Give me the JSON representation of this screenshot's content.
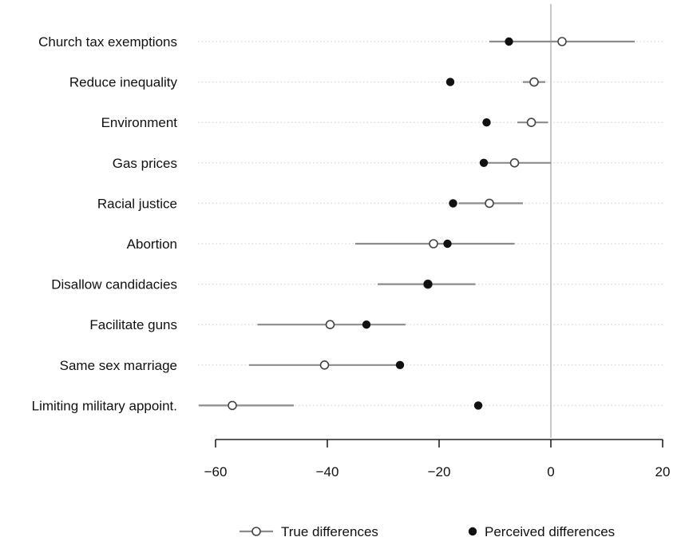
{
  "chart_data": {
    "type": "scatter",
    "categories": [
      "Church tax exemptions",
      "Reduce inequality",
      "Environment",
      "Gas prices",
      "Racial justice",
      "Abortion",
      "Disallow candidacies",
      "Facilitate guns",
      "Same sex marriage",
      "Limiting military appoint."
    ],
    "series": [
      {
        "name": "True differences",
        "marker": "open-circle",
        "values": [
          2,
          -3,
          -3.5,
          -6.5,
          -11,
          -21,
          -22,
          -39.5,
          -40.5,
          -57
        ],
        "ci_low": [
          -11,
          -5,
          -6,
          -12,
          -16.5,
          -35,
          -31,
          -52.5,
          -54,
          -63
        ],
        "ci_high": [
          15,
          -1,
          -0.5,
          0,
          -5,
          -6.5,
          -13.5,
          -26,
          -27,
          -46
        ]
      },
      {
        "name": "Perceived differences",
        "marker": "filled-circle",
        "values": [
          -7.5,
          -18,
          -11.5,
          -12,
          -17.5,
          -18.5,
          -22,
          -33,
          -27,
          -13
        ]
      }
    ],
    "xlim": [
      -60,
      20
    ],
    "xticks": [
      -60,
      -40,
      -20,
      0,
      20
    ],
    "xtick_labels": [
      "−60",
      "−40",
      "−20",
      "0",
      "20"
    ],
    "reference_line_x": 0,
    "gridlines": "dotted-horizontal",
    "legend_position": "bottom"
  },
  "colors": {
    "ci_line": "#8c8c8c",
    "reference_line": "#c8c8c8",
    "axis": "#222222",
    "marker": "#111111",
    "grid": "#dddddd"
  }
}
